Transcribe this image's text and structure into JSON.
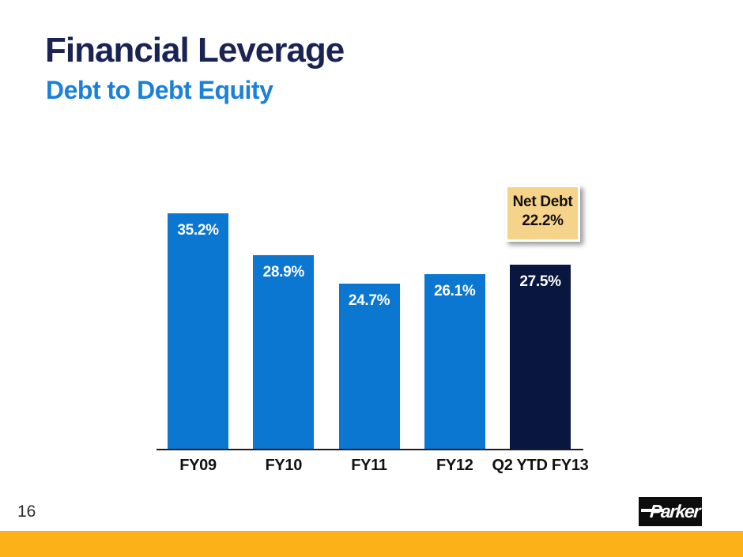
{
  "slide": {
    "title": "Financial Leverage",
    "subtitle": "Debt to Debt Equity",
    "page_number": "16",
    "logo_text": "Parker",
    "accent_color": "#FBB117",
    "title_color": "#1A2353",
    "subtitle_color": "#1A80D8"
  },
  "chart_data": {
    "type": "bar",
    "title": "Debt to Debt Equity",
    "xlabel": "",
    "ylabel": "",
    "categories": [
      "FY09",
      "FY10",
      "FY11",
      "FY12",
      "Q2 YTD FY13"
    ],
    "values": [
      35.2,
      28.9,
      24.7,
      26.1,
      27.5
    ],
    "value_labels": [
      "35.2%",
      "28.9%",
      "24.7%",
      "26.1%",
      "27.5%"
    ],
    "bar_colors": [
      "#0B77D0",
      "#0B77D0",
      "#0B77D0",
      "#0B77D0",
      "#081640"
    ],
    "ylim": [
      0,
      40
    ],
    "grid": false,
    "legend": "none",
    "axis_line_color": "#1c1c1c",
    "annotation": {
      "line1": "Net Debt",
      "line2": "22.2%",
      "fill_color": "#F6D38A",
      "border_color": "#FFFFFF",
      "target_category": "Q2 YTD FY13"
    }
  }
}
